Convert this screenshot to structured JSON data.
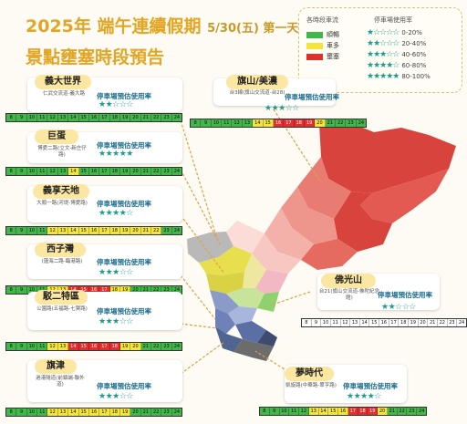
{
  "header": {
    "title_line1": "2025年 端午連續假期",
    "title_date": "5/30(五) 第一天",
    "title_line2": "景點壅塞時段預告"
  },
  "legend": {
    "header_left": "各時段車流",
    "header_right": "停車場使用率",
    "levels": [
      {
        "label": "順暢",
        "color": "#41b649"
      },
      {
        "label": "車多",
        "color": "#f3e53b"
      },
      {
        "label": "壅塞",
        "color": "#e62d2d"
      }
    ],
    "occupancy": [
      {
        "stars": "★☆☆☆☆",
        "range": "0-20%"
      },
      {
        "stars": "★★☆☆☆",
        "range": "20-40%"
      },
      {
        "stars": "★★★☆☆",
        "range": "40-60%"
      },
      {
        "stars": "★★★★☆",
        "range": "60-80%"
      },
      {
        "stars": "★★★★★",
        "range": "80-100%"
      }
    ]
  },
  "parking_label": "停車場預估使用率",
  "hours": [
    "8",
    "9",
    "10",
    "11",
    "12",
    "13",
    "14",
    "15",
    "16",
    "17",
    "18",
    "19",
    "20",
    "21",
    "22",
    "23",
    "24"
  ],
  "places": [
    {
      "name": "義大世界",
      "address": "仁武交流道-義大路",
      "stars": "★★☆☆☆",
      "rating": 2,
      "traffic": [
        "g",
        "g",
        "g",
        "g",
        "g",
        "g",
        "g",
        "g",
        "g",
        "g",
        "g",
        "g",
        "g",
        "g",
        "g",
        "g",
        "g"
      ]
    },
    {
      "name": "巨蛋",
      "address": "博愛二路(立文-新庄仔路)",
      "stars": "★★★★★",
      "rating": 5,
      "traffic": [
        "g",
        "g",
        "g",
        "g",
        "g",
        "g",
        "y",
        "g",
        "g",
        "g",
        "g",
        "g",
        "g",
        "g",
        "g",
        "g",
        "g"
      ]
    },
    {
      "name": "義享天地",
      "address": "大順一路(河堤-博愛路)",
      "stars": "★★★★☆",
      "rating": 4,
      "traffic": [
        "g",
        "g",
        "g",
        "g",
        "y",
        "y",
        "y",
        "y",
        "y",
        "y",
        "y",
        "y",
        "y",
        "y",
        "y",
        "g",
        "g"
      ]
    },
    {
      "name": "西子灣",
      "address": "(蓮海二路-臨港路)",
      "stars": "★★★☆☆",
      "rating": 3,
      "traffic": [
        "g",
        "g",
        "g",
        "g",
        "y",
        "y",
        "r",
        "r",
        "r",
        "r",
        "y",
        "y",
        "g",
        "g",
        "g",
        "g",
        "g"
      ]
    },
    {
      "name": "駁二特區",
      "address": "公園路(五福路-七賢路)",
      "stars": "★★★☆☆",
      "rating": 3,
      "traffic": [
        "g",
        "g",
        "g",
        "g",
        "y",
        "y",
        "r",
        "r",
        "r",
        "r",
        "r",
        "y",
        "y",
        "g",
        "g",
        "g",
        "g"
      ]
    },
    {
      "name": "旗津",
      "address": "過港隧道(前鎮端-聯外道)",
      "stars": "★★★☆☆",
      "rating": 3,
      "traffic": [
        "g",
        "g",
        "g",
        "g",
        "y",
        "y",
        "y",
        "y",
        "y",
        "y",
        "y",
        "y",
        "g",
        "g",
        "g",
        "g",
        "g"
      ]
    },
    {
      "name": "旗山/美濃",
      "address": "台3線(旗山交流道-台28)",
      "stars": "★★★☆☆",
      "rating": 3,
      "traffic": [
        "g",
        "g",
        "g",
        "g",
        "g",
        "g",
        "y",
        "y",
        "r",
        "r",
        "r",
        "r",
        "y",
        "g",
        "g",
        "g",
        "g"
      ]
    },
    {
      "name": "佛光山",
      "address": "台21(旗山交流道-佛陀紀念館)",
      "stars": "★★☆☆☆",
      "rating": 2,
      "traffic": [
        "w",
        "w",
        "w",
        "w",
        "w",
        "w",
        "w",
        "w",
        "w",
        "w",
        "w",
        "w",
        "w",
        "w",
        "w",
        "w",
        "w"
      ]
    },
    {
      "name": "夢時代",
      "address": "凱旋路(中華路-翠亨路)",
      "stars": "★★★★☆",
      "rating": 4,
      "traffic": [
        "g",
        "g",
        "g",
        "g",
        "g",
        "y",
        "y",
        "y",
        "y",
        "r",
        "r",
        "r",
        "y",
        "g",
        "g",
        "g",
        "g"
      ]
    }
  ]
}
